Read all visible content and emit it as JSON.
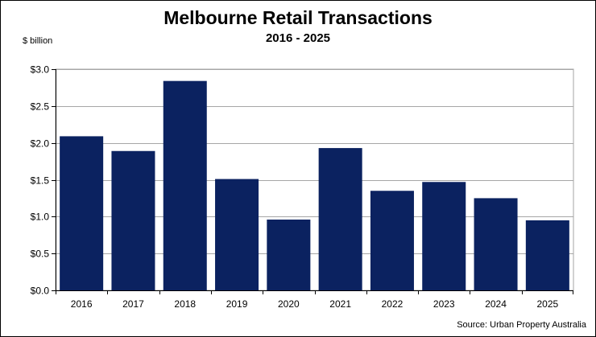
{
  "chart_data": {
    "type": "bar",
    "title": "Melbourne Retail Transactions",
    "subtitle": "2016 - 2025",
    "ylabel": "$ billion",
    "source": "Source: Urban Property Australia",
    "categories": [
      "2016",
      "2017",
      "2018",
      "2019",
      "2020",
      "2021",
      "2022",
      "2023",
      "2024",
      "2025"
    ],
    "values": [
      2.09,
      1.89,
      2.84,
      1.51,
      0.96,
      1.93,
      1.35,
      1.47,
      1.25,
      0.95
    ],
    "ylim": [
      0,
      3.0
    ],
    "yticks": [
      {
        "value": 0.0,
        "label": "$0.0"
      },
      {
        "value": 0.5,
        "label": "$0.5"
      },
      {
        "value": 1.0,
        "label": "$1.0"
      },
      {
        "value": 1.5,
        "label": "$1.5"
      },
      {
        "value": 2.0,
        "label": "$2.0"
      },
      {
        "value": 2.5,
        "label": "$2.5"
      },
      {
        "value": 3.0,
        "label": "$3.0"
      }
    ],
    "grid": true,
    "legend": "none",
    "colors": {
      "bar": "#0b2260",
      "grid": "#a6a6a6",
      "axis": "#000000"
    }
  }
}
